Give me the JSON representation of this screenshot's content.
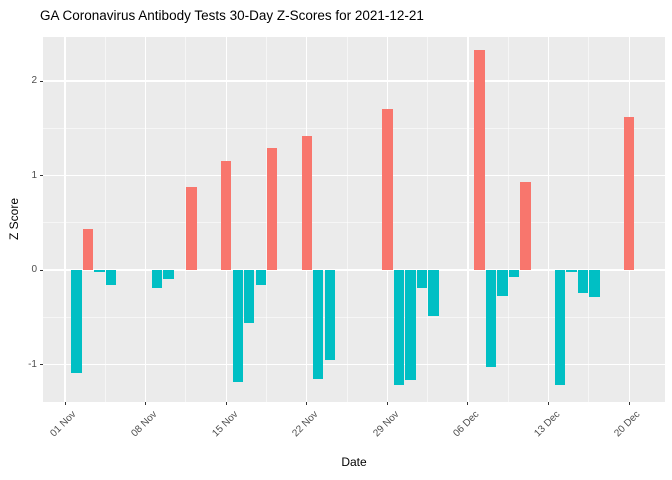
{
  "title": "GA Coronavirus Antibody Tests 30-Day Z-Scores for 2021-12-21",
  "chart_data": {
    "type": "bar",
    "title": "GA Coronavirus Antibody Tests 30-Day Z-Scores for 2021-12-21",
    "xlabel": "Date",
    "ylabel": "Z Score",
    "legend": "none",
    "grid": "on",
    "panel_background": "#EBEBEB",
    "gridline_color": "#FFFFFF",
    "axis_text_color": "#4D4D4D",
    "positive_color": "#F8766D",
    "negative_color": "#00BFC4",
    "ylim": [
      -1.4,
      2.47
    ],
    "y_ticks": [
      {
        "label": "-1",
        "value": -1
      },
      {
        "label": "0",
        "value": 0
      },
      {
        "label": "1",
        "value": 1
      },
      {
        "label": "2",
        "value": 2
      }
    ],
    "y_minor_ticks": [
      -0.5,
      0.5,
      1.5
    ],
    "x_ticks": [
      {
        "label": "01 Nov",
        "day": 0
      },
      {
        "label": "08 Nov",
        "day": 7
      },
      {
        "label": "15 Nov",
        "day": 14
      },
      {
        "label": "22 Nov",
        "day": 21
      },
      {
        "label": "29 Nov",
        "day": 28
      },
      {
        "label": "06 Dec",
        "day": 35
      },
      {
        "label": "13 Dec",
        "day": 42
      },
      {
        "label": "20 Dec",
        "day": 49
      }
    ],
    "x_minor_days": [
      3.5,
      10.5,
      17.5,
      24.5,
      31.5,
      38.5,
      45.5
    ],
    "bars": [
      {
        "date": "02 Nov",
        "day": 1,
        "value": -1.09
      },
      {
        "date": "03 Nov",
        "day": 2,
        "value": 0.43
      },
      {
        "date": "04 Nov",
        "day": 3,
        "value": -0.02
      },
      {
        "date": "05 Nov",
        "day": 4,
        "value": -0.16
      },
      {
        "date": "09 Nov",
        "day": 8,
        "value": -0.19
      },
      {
        "date": "10 Nov",
        "day": 9,
        "value": -0.09
      },
      {
        "date": "12 Nov",
        "day": 11,
        "value": 0.88
      },
      {
        "date": "15 Nov",
        "day": 14,
        "value": 1.15
      },
      {
        "date": "16 Nov",
        "day": 15,
        "value": -1.19
      },
      {
        "date": "17 Nov",
        "day": 16,
        "value": -0.56
      },
      {
        "date": "18 Nov",
        "day": 17,
        "value": -0.16
      },
      {
        "date": "19 Nov",
        "day": 18,
        "value": 1.29
      },
      {
        "date": "22 Nov",
        "day": 21,
        "value": 1.42
      },
      {
        "date": "23 Nov",
        "day": 22,
        "value": -1.15
      },
      {
        "date": "24 Nov",
        "day": 23,
        "value": -0.95
      },
      {
        "date": "29 Nov",
        "day": 28,
        "value": 1.7
      },
      {
        "date": "30 Nov",
        "day": 29,
        "value": -1.22
      },
      {
        "date": "01 Dec",
        "day": 30,
        "value": -1.16
      },
      {
        "date": "02 Dec",
        "day": 31,
        "value": -0.19
      },
      {
        "date": "03 Dec",
        "day": 32,
        "value": -0.49
      },
      {
        "date": "07 Dec",
        "day": 36,
        "value": 2.33
      },
      {
        "date": "08 Dec",
        "day": 37,
        "value": -1.03
      },
      {
        "date": "09 Dec",
        "day": 38,
        "value": -0.28
      },
      {
        "date": "10 Dec",
        "day": 39,
        "value": -0.07
      },
      {
        "date": "11 Dec",
        "day": 40,
        "value": 0.93
      },
      {
        "date": "14 Dec",
        "day": 43,
        "value": -1.22
      },
      {
        "date": "15 Dec",
        "day": 44,
        "value": -0.02
      },
      {
        "date": "16 Dec",
        "day": 45,
        "value": -0.24
      },
      {
        "date": "17 Dec",
        "day": 46,
        "value": -0.29
      },
      {
        "date": "20 Dec",
        "day": 49,
        "value": 1.62
      }
    ]
  }
}
